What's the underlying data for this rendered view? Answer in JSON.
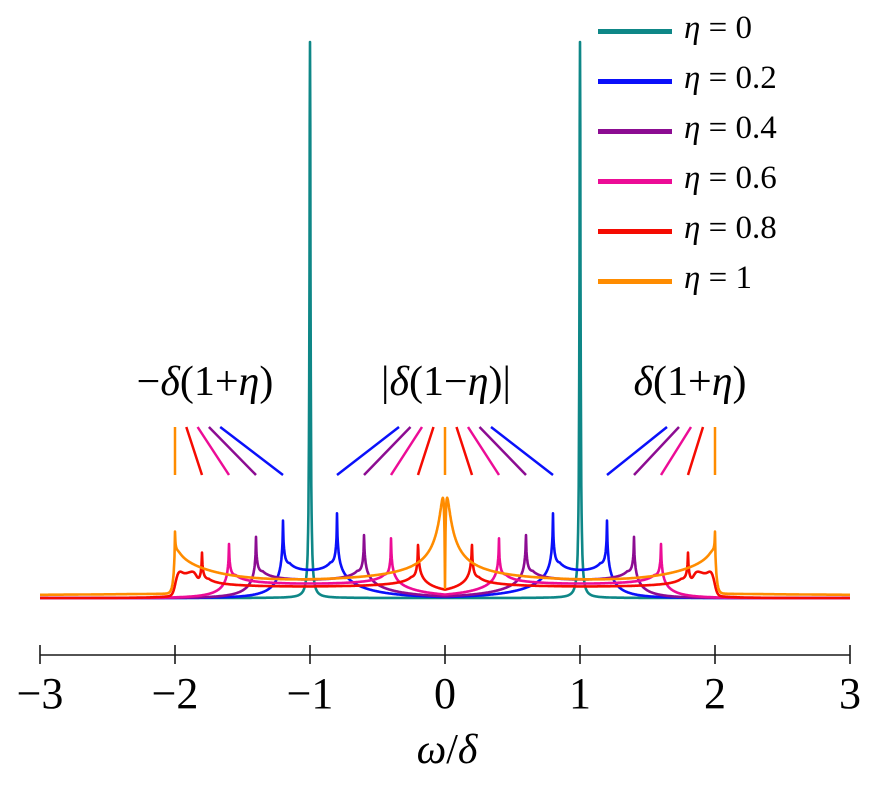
{
  "chart_data": {
    "type": "line",
    "title": "",
    "xlabel": "ω/δ",
    "ylabel": "",
    "x_range": [
      -3,
      3
    ],
    "y_axis": "hidden (arbitrary units, baseline at 0)",
    "grid": false,
    "x_ticks": {
      "values": [
        -3,
        -2,
        -1,
        0,
        1,
        2,
        3
      ],
      "labels": [
        "−3",
        "−2",
        "−1",
        "0",
        "1",
        "2",
        "3"
      ]
    },
    "legend": {
      "position": "top-right",
      "items": [
        {
          "label": "η = 0",
          "color": "#0e8787"
        },
        {
          "label": "η = 0.2",
          "color": "#0a10fa"
        },
        {
          "label": "η = 0.4",
          "color": "#8c0c92"
        },
        {
          "label": "η = 0.6",
          "color": "#ec0c96"
        },
        {
          "label": "η = 0.8",
          "color": "#f50b02"
        },
        {
          "label": "η = 1",
          "color": "#ff8c00"
        }
      ]
    },
    "series": [
      {
        "name": "η = 0",
        "eta": 0,
        "color": "#0e8787",
        "kind": "spike",
        "peaks_omega": [
          -1,
          1
        ],
        "spike_height": 556,
        "spike_halfwidth": 0.0045
      },
      {
        "name": "η = 0.2",
        "eta": 0.2,
        "color": "#0a10fa",
        "kind": "band",
        "band": [
          0.8,
          1.2
        ],
        "peaks_omega": [
          -1.2,
          -0.8,
          0.8,
          1.2
        ],
        "inner_peak_h": 74,
        "outer_peak_h": 70,
        "plateau": 8
      },
      {
        "name": "η = 0.4",
        "eta": 0.4,
        "color": "#8c0c92",
        "kind": "band",
        "band": [
          0.6,
          1.4
        ],
        "peaks_omega": [
          -1.4,
          -0.6,
          0.6,
          1.4
        ],
        "inner_peak_h": 59,
        "outer_peak_h": 57,
        "plateau": 7
      },
      {
        "name": "η = 0.6",
        "eta": 0.6,
        "color": "#ec0c96",
        "kind": "band",
        "band": [
          0.4,
          1.6
        ],
        "peaks_omega": [
          -1.6,
          -0.4,
          0.4,
          1.6
        ],
        "inner_peak_h": 53,
        "outer_peak_h": 51,
        "plateau": 6
      },
      {
        "name": "η = 0.8",
        "eta": 0.8,
        "color": "#f50b02",
        "kind": "band",
        "band": [
          0.2,
          1.8
        ],
        "peaks_omega": [
          -1.8,
          -0.2,
          0.2,
          1.8
        ],
        "inner_peak_h": 51,
        "outer_peak_h": 43,
        "plateau": 5,
        "shoulder": {
          "from": 1.84,
          "cutoff": 2.0,
          "base": 20,
          "bump": 4,
          "bump_at": 1.97
        }
      },
      {
        "name": "η = 1",
        "eta": 1,
        "color": "#ff8c00",
        "kind": "band-center",
        "band": [
          0,
          2
        ],
        "peaks_omega": [
          -2,
          0,
          2
        ],
        "center_peak_h": 90,
        "center_tip": 0.016,
        "outer_peak_h": 48,
        "plateau_base": 8,
        "plateau_rise": 20
      }
    ],
    "annotations": [
      {
        "text": "−δ(1+η)",
        "side": "left",
        "pointers": [
          {
            "omega": -2.0,
            "color": "#ff8c00"
          },
          {
            "omega": -1.8,
            "color": "#f50b02"
          },
          {
            "omega": -1.6,
            "color": "#ec0c96"
          },
          {
            "omega": -1.4,
            "color": "#8c0c92"
          },
          {
            "omega": -1.2,
            "color": "#0a10fa"
          }
        ]
      },
      {
        "text": "|δ(1−η)|",
        "side": "center",
        "pointers": [
          {
            "omega": -0.8,
            "color": "#0a10fa"
          },
          {
            "omega": -0.6,
            "color": "#8c0c92"
          },
          {
            "omega": -0.4,
            "color": "#ec0c96"
          },
          {
            "omega": -0.2,
            "color": "#f50b02"
          },
          {
            "omega": 0.0,
            "color": "#ff8c00"
          },
          {
            "omega": 0.2,
            "color": "#f50b02"
          },
          {
            "omega": 0.4,
            "color": "#ec0c96"
          },
          {
            "omega": 0.6,
            "color": "#8c0c92"
          },
          {
            "omega": 0.8,
            "color": "#0a10fa"
          }
        ]
      },
      {
        "text": "δ(1+η)",
        "side": "right",
        "pointers": [
          {
            "omega": 1.2,
            "color": "#0a10fa"
          },
          {
            "omega": 1.4,
            "color": "#8c0c92"
          },
          {
            "omega": 1.6,
            "color": "#ec0c96"
          },
          {
            "omega": 1.8,
            "color": "#f50b02"
          },
          {
            "omega": 2.0,
            "color": "#ff8c00"
          }
        ]
      }
    ]
  }
}
